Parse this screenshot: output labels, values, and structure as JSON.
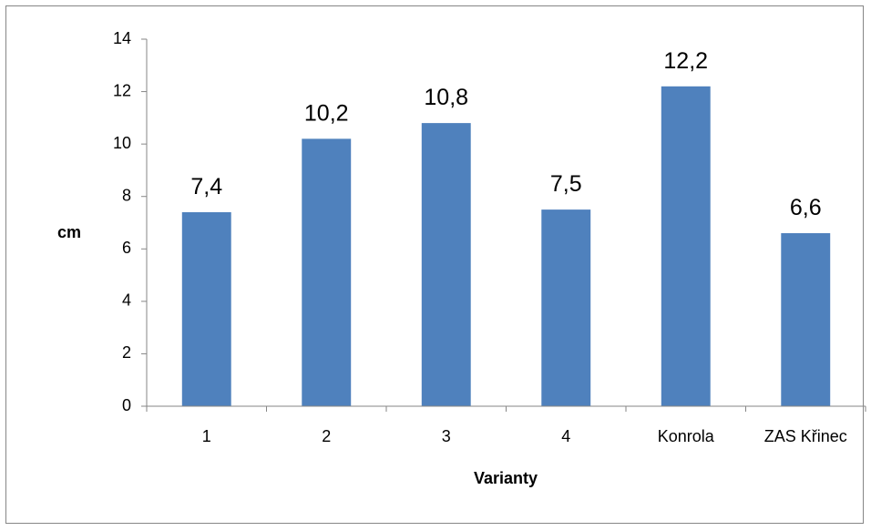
{
  "chart_data": {
    "type": "bar",
    "categories": [
      "1",
      "2",
      "3",
      "4",
      "Konrola",
      "ZAS Křinec"
    ],
    "values": [
      7.4,
      10.2,
      10.8,
      7.5,
      12.2,
      6.6
    ],
    "data_labels": [
      "7,4",
      "10,2",
      "10,8",
      "7,5",
      "12,2",
      "6,6"
    ],
    "title": "",
    "xlabel": "Varianty",
    "ylabel": "cm",
    "ylim": [
      0,
      14
    ],
    "yticks": [
      0,
      2,
      4,
      6,
      8,
      10,
      12,
      14
    ],
    "grid": false,
    "legend": "none",
    "bar_color": "#4F81BD",
    "axis_color": "#868686"
  }
}
